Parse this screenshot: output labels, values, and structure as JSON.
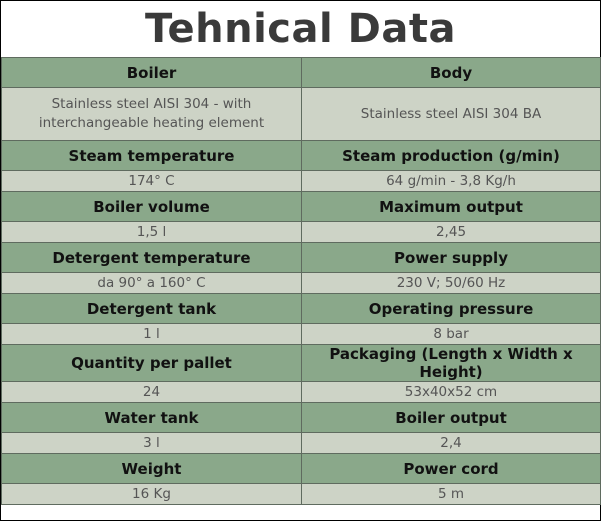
{
  "title": "Tehnical Data",
  "rows": [
    {
      "left_label": "Boiler",
      "left_value": "Stainless steel AISI 304 - with interchangeable heating element",
      "right_label": "Body",
      "right_value": "Stainless steel AISI 304 BA"
    },
    {
      "left_label": "Steam temperature",
      "left_value": "174° C",
      "right_label": "Steam production (g/min)",
      "right_value": "64 g/min - 3,8 Kg/h"
    },
    {
      "left_label": "Boiler volume",
      "left_value": "1,5 l",
      "right_label": "Maximum output",
      "right_value": "2,45"
    },
    {
      "left_label": "Detergent temperature",
      "left_value": "da 90° a 160° C",
      "right_label": "Power supply",
      "right_value": "230 V; 50/60 Hz"
    },
    {
      "left_label": "Detergent tank",
      "left_value": "1 l",
      "right_label": "Operating pressure",
      "right_value": "8 bar"
    },
    {
      "left_label": "Quantity per pallet",
      "left_value": "24",
      "right_label": "Packaging (Length x Width x Height)",
      "right_value": "53x40x52 cm"
    },
    {
      "left_label": "Water tank",
      "left_value": "3 l",
      "right_label": "Boiler output",
      "right_value": "2,4"
    },
    {
      "left_label": "Weight",
      "left_value": "16 Kg",
      "right_label": "Power cord",
      "right_value": "5 m"
    }
  ],
  "colors": {
    "header_bg": "#8aa88a",
    "value_bg": "#cdd3c6",
    "title_text": "#3a3a3a"
  }
}
